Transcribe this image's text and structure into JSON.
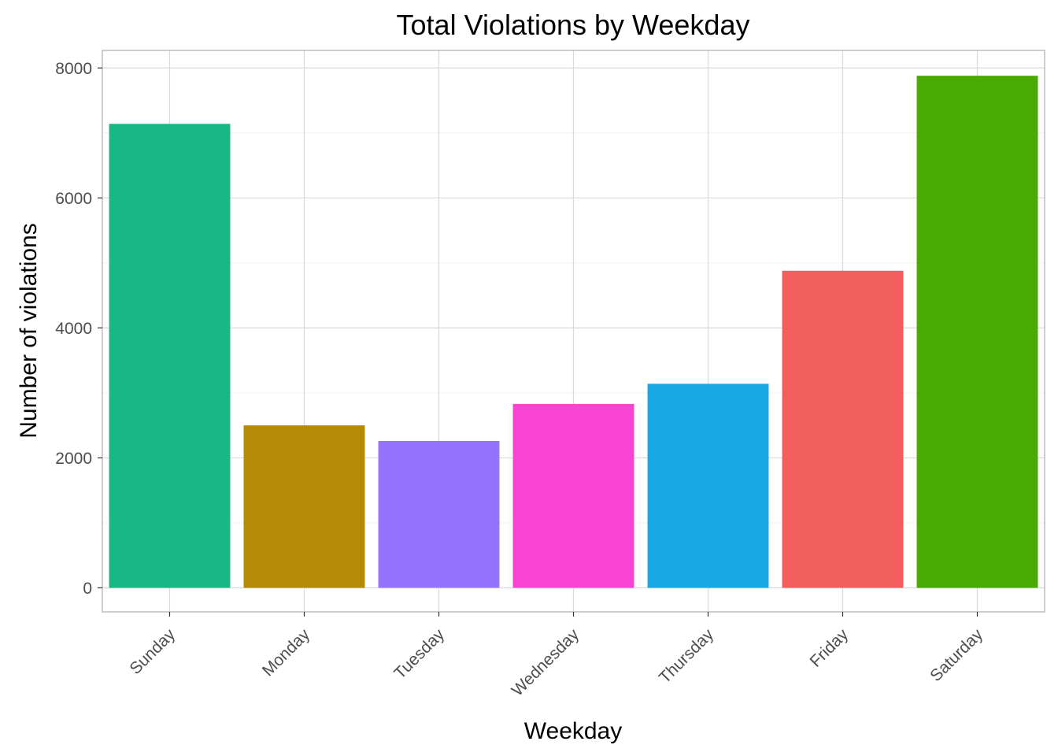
{
  "chart_data": {
    "type": "bar",
    "title": "Total Violations by Weekday",
    "xlabel": "Weekday",
    "ylabel": "Number of violations",
    "categories": [
      "Sunday",
      "Monday",
      "Tuesday",
      "Wednesday",
      "Thursday",
      "Friday",
      "Saturday"
    ],
    "values": [
      7140,
      2500,
      2260,
      2830,
      3140,
      4880,
      7880
    ],
    "colors": [
      "#1AB786",
      "#B58A07",
      "#9673FF",
      "#F844D2",
      "#19A7E5",
      "#F25E5B",
      "#48AA02"
    ],
    "ylim": [
      -370,
      8270
    ],
    "yticks": [
      0,
      2000,
      4000,
      6000,
      8000
    ],
    "yticks_labels": [
      "0",
      "2000",
      "4000",
      "6000",
      "8000"
    ],
    "grid": true,
    "legend": "none"
  }
}
